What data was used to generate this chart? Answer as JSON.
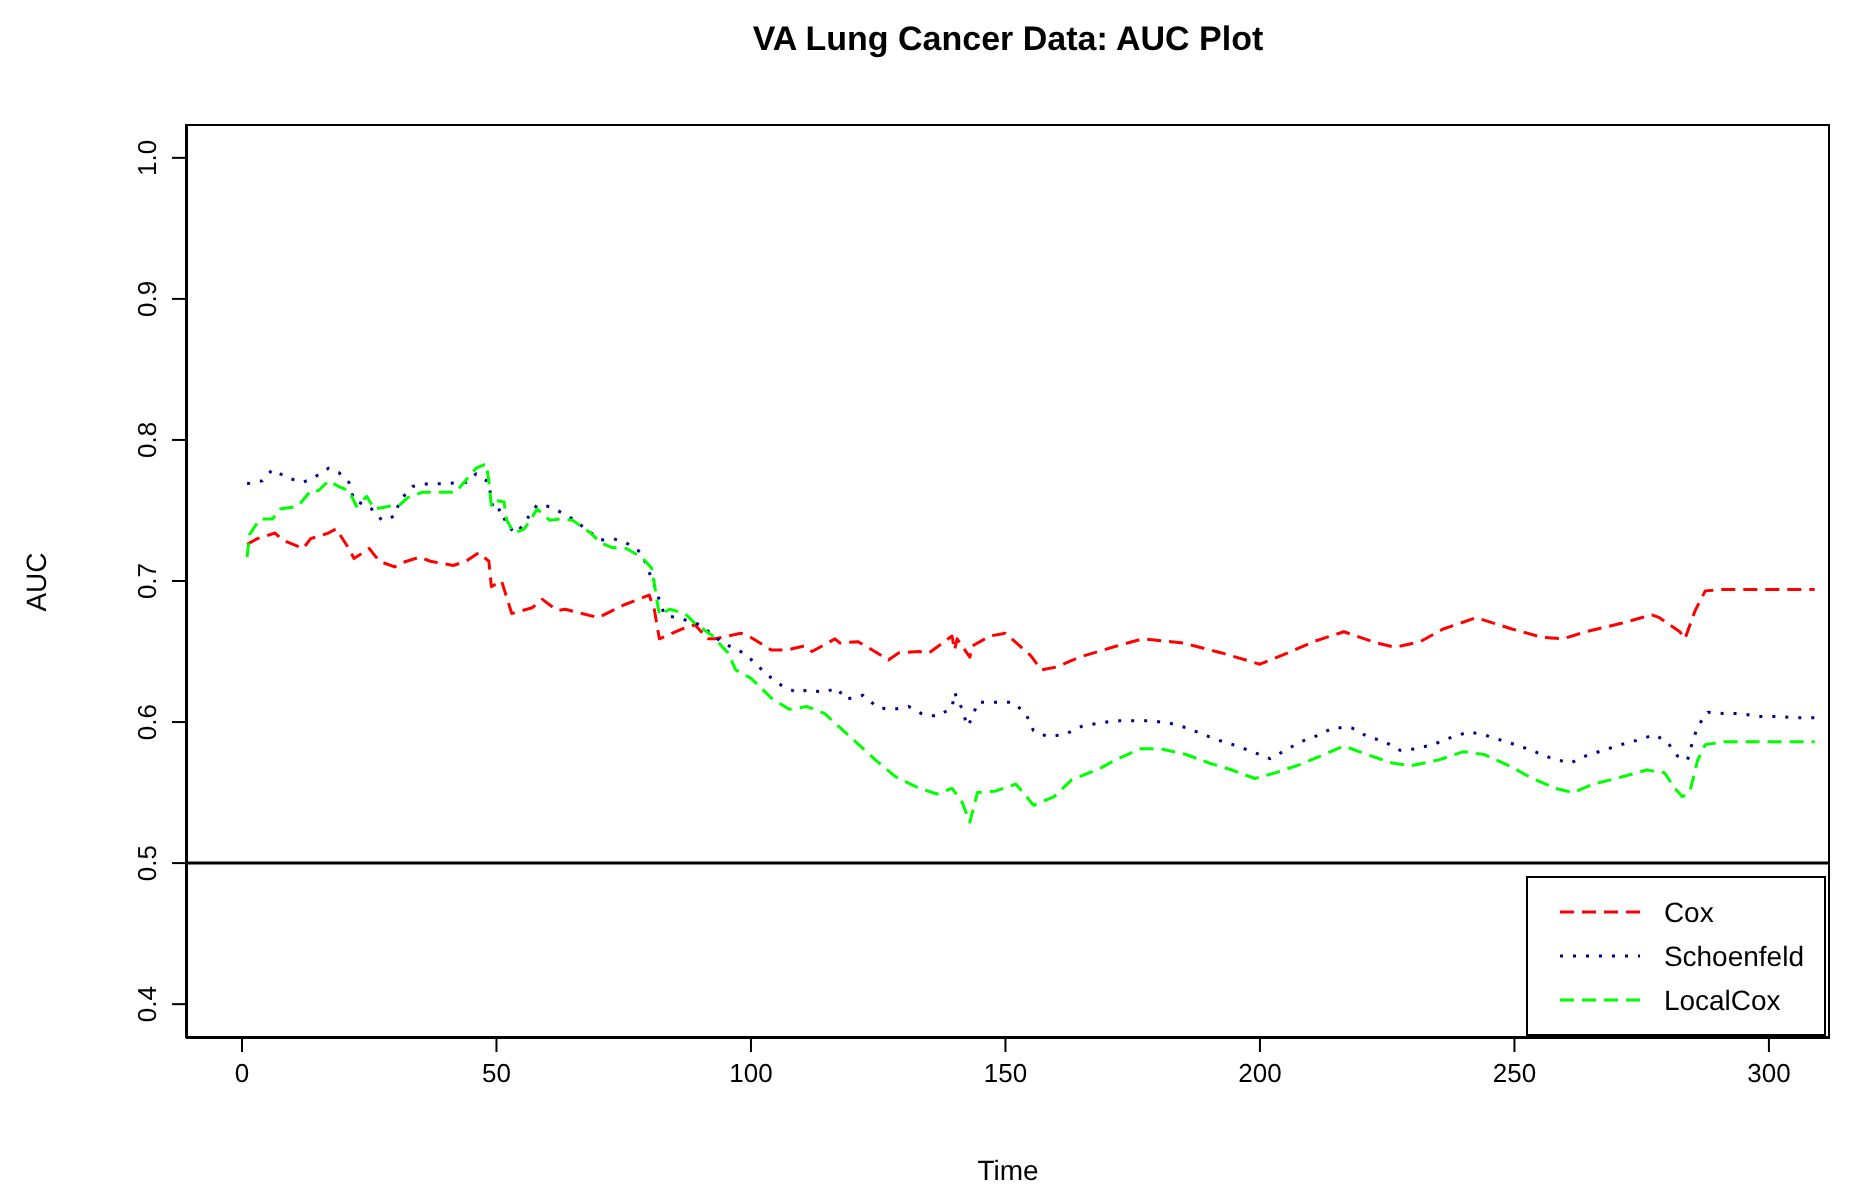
{
  "chart_data": {
    "type": "line",
    "title": "VA Lung Cancer Data: AUC Plot",
    "xlabel": "Time",
    "ylabel": "AUC",
    "xlim": [
      -11,
      312
    ],
    "xticks": [
      0,
      50,
      100,
      150,
      200,
      250,
      300
    ],
    "ylim": [
      0.376,
      1.024
    ],
    "yticks": [
      0.4,
      0.5,
      0.6,
      0.7,
      0.8,
      0.9,
      {
        "value": 1,
        "label": "1.0"
      }
    ],
    "grid": false,
    "legend": "bottom right",
    "marker": "none",
    "ref_lines": [
      {
        "axis": "y",
        "value": 0.5,
        "color": "#000000",
        "line_style": "solid"
      }
    ],
    "series": [
      {
        "name": "Cox",
        "color": "#ff0000",
        "line_style": "dashed",
        "x": [
          1,
          3,
          6.5,
          8,
          12,
          13.5,
          17,
          18.5,
          21,
          22,
          25,
          27,
          30,
          31.5,
          35,
          37,
          41.5,
          44,
          46.5,
          48.5,
          49,
          51,
          53,
          57,
          59,
          62,
          63.5,
          70,
          75,
          80,
          81,
          82,
          86.5,
          89,
          91.5,
          93,
          98,
          100,
          104,
          107,
          110.5,
          112,
          116.5,
          117.5,
          121,
          123,
          127,
          129,
          133,
          135,
          139.5,
          140,
          140.5,
          143,
          143.5,
          147,
          150,
          155,
          157,
          160,
          164.5,
          171,
          177,
          185,
          192.5,
          200,
          205.5,
          210.5,
          216.5,
          223,
          226.5,
          231.5,
          236,
          242.5,
          249.5,
          255.5,
          259.5,
          264,
          271,
          277,
          278.5,
          282.5,
          283.5,
          285.5,
          287.5,
          291,
          309
        ],
        "values": [
          0.726,
          0.73,
          0.734,
          0.729,
          0.723,
          0.73,
          0.734,
          0.737,
          0.723,
          0.716,
          0.723,
          0.714,
          0.71,
          0.713,
          0.717,
          0.714,
          0.711,
          0.714,
          0.72,
          0.714,
          0.696,
          0.7,
          0.677,
          0.681,
          0.687,
          0.679,
          0.68,
          0.674,
          0.683,
          0.69,
          0.68,
          0.659,
          0.666,
          0.669,
          0.659,
          0.659,
          0.663,
          0.66,
          0.651,
          0.651,
          0.654,
          0.65,
          0.659,
          0.656,
          0.657,
          0.653,
          0.644,
          0.649,
          0.65,
          0.649,
          0.661,
          0.651,
          0.659,
          0.646,
          0.654,
          0.661,
          0.663,
          0.647,
          0.637,
          0.639,
          0.646,
          0.653,
          0.659,
          0.656,
          0.649,
          0.641,
          0.649,
          0.657,
          0.664,
          0.656,
          0.653,
          0.657,
          0.666,
          0.674,
          0.666,
          0.66,
          0.659,
          0.664,
          0.67,
          0.676,
          0.674,
          0.664,
          0.659,
          0.679,
          0.693,
          0.694,
          0.694
        ]
      },
      {
        "name": "Schoenfeld",
        "color": "#00008b",
        "line_style": "dotted",
        "x": [
          1,
          4,
          6,
          9,
          12,
          14,
          17,
          19,
          21,
          22,
          25,
          27.5,
          30,
          31,
          33.5,
          36.5,
          40,
          44,
          46,
          48.5,
          49,
          49.5,
          51,
          52,
          54,
          58,
          60,
          62,
          65,
          67.5,
          70.5,
          73,
          75.5,
          78.5,
          81,
          83,
          86.5,
          90,
          94.5,
          98,
          100.5,
          103,
          106,
          109,
          111.5,
          114,
          117,
          118.5,
          122,
          125,
          128,
          131,
          133.5,
          136.5,
          139.5,
          140,
          141.5,
          142.5,
          143.5,
          144.5,
          148,
          151.5,
          154,
          155.5,
          158,
          161.5,
          165,
          168,
          171.5,
          175,
          178.5,
          182.5,
          185.5,
          189,
          192,
          195.5,
          198.5,
          202,
          205,
          208,
          211,
          214.5,
          218,
          221,
          224.5,
          227.5,
          230.5,
          234,
          237.5,
          241,
          244,
          247.5,
          251,
          254,
          257.5,
          261,
          264,
          267.5,
          271,
          274,
          277.5,
          280,
          282,
          284,
          285,
          286,
          288,
          291,
          294.5,
          298,
          301.5,
          305.5,
          309
        ],
        "values": [
          0.769,
          0.771,
          0.779,
          0.773,
          0.77,
          0.773,
          0.78,
          0.777,
          0.77,
          0.757,
          0.753,
          0.743,
          0.746,
          0.757,
          0.767,
          0.769,
          0.769,
          0.77,
          0.776,
          0.77,
          0.757,
          0.749,
          0.751,
          0.739,
          0.734,
          0.754,
          0.753,
          0.75,
          0.744,
          0.737,
          0.729,
          0.73,
          0.727,
          0.72,
          0.697,
          0.676,
          0.673,
          0.669,
          0.656,
          0.65,
          0.643,
          0.634,
          0.626,
          0.621,
          0.623,
          0.621,
          0.624,
          0.616,
          0.619,
          0.61,
          0.609,
          0.611,
          0.606,
          0.604,
          0.61,
          0.621,
          0.609,
          0.597,
          0.603,
          0.614,
          0.614,
          0.614,
          0.606,
          0.594,
          0.59,
          0.591,
          0.597,
          0.599,
          0.601,
          0.601,
          0.601,
          0.599,
          0.596,
          0.591,
          0.587,
          0.583,
          0.579,
          0.574,
          0.58,
          0.586,
          0.59,
          0.596,
          0.596,
          0.59,
          0.586,
          0.58,
          0.581,
          0.584,
          0.589,
          0.593,
          0.591,
          0.587,
          0.583,
          0.579,
          0.574,
          0.571,
          0.576,
          0.58,
          0.584,
          0.587,
          0.591,
          0.586,
          0.576,
          0.573,
          0.586,
          0.597,
          0.607,
          0.606,
          0.606,
          0.604,
          0.604,
          0.603,
          0.603
        ]
      },
      {
        "name": "LocalCox",
        "color": "#00ff00",
        "line_style": "dashed",
        "x": [
          1,
          1.5,
          3.5,
          6,
          7.5,
          11,
          13.5,
          15,
          17,
          19,
          21,
          22.5,
          24.5,
          26,
          29,
          31,
          32.5,
          35.5,
          39,
          42,
          46,
          48,
          48.5,
          49,
          50,
          51.5,
          52,
          53.5,
          55.5,
          58,
          60.5,
          62.5,
          65,
          68.5,
          70.5,
          72.5,
          75.5,
          78.5,
          80.5,
          82,
          84,
          87,
          89,
          92.5,
          95.5,
          97,
          100,
          101.5,
          104,
          107.5,
          111,
          114.5,
          117.5,
          121.5,
          124.5,
          128.5,
          132.5,
          136.5,
          139.5,
          141.5,
          143,
          144.5,
          148,
          152,
          153.5,
          155.5,
          159.5,
          163,
          168.5,
          171.5,
          176.5,
          180.5,
          185.5,
          190,
          194.5,
          199,
          203,
          208,
          216.5,
          221,
          226,
          229.5,
          235,
          240,
          244,
          249,
          253,
          258,
          261.5,
          265.5,
          271,
          276,
          279.5,
          281.5,
          283,
          284.5,
          286,
          287.5,
          291,
          309
        ],
        "values": [
          0.717,
          0.733,
          0.744,
          0.744,
          0.751,
          0.753,
          0.764,
          0.764,
          0.771,
          0.767,
          0.764,
          0.753,
          0.76,
          0.751,
          0.753,
          0.754,
          0.759,
          0.763,
          0.763,
          0.763,
          0.78,
          0.783,
          0.771,
          0.753,
          0.757,
          0.756,
          0.743,
          0.734,
          0.737,
          0.751,
          0.743,
          0.744,
          0.743,
          0.734,
          0.727,
          0.724,
          0.723,
          0.717,
          0.709,
          0.676,
          0.68,
          0.677,
          0.67,
          0.661,
          0.649,
          0.637,
          0.631,
          0.626,
          0.617,
          0.609,
          0.611,
          0.606,
          0.596,
          0.583,
          0.573,
          0.561,
          0.554,
          0.549,
          0.553,
          0.543,
          0.529,
          0.55,
          0.551,
          0.556,
          0.55,
          0.541,
          0.547,
          0.559,
          0.567,
          0.573,
          0.581,
          0.581,
          0.577,
          0.571,
          0.566,
          0.56,
          0.564,
          0.57,
          0.583,
          0.577,
          0.571,
          0.569,
          0.573,
          0.579,
          0.577,
          0.569,
          0.561,
          0.553,
          0.55,
          0.556,
          0.561,
          0.566,
          0.564,
          0.553,
          0.547,
          0.551,
          0.573,
          0.584,
          0.586,
          0.586
        ]
      }
    ]
  }
}
